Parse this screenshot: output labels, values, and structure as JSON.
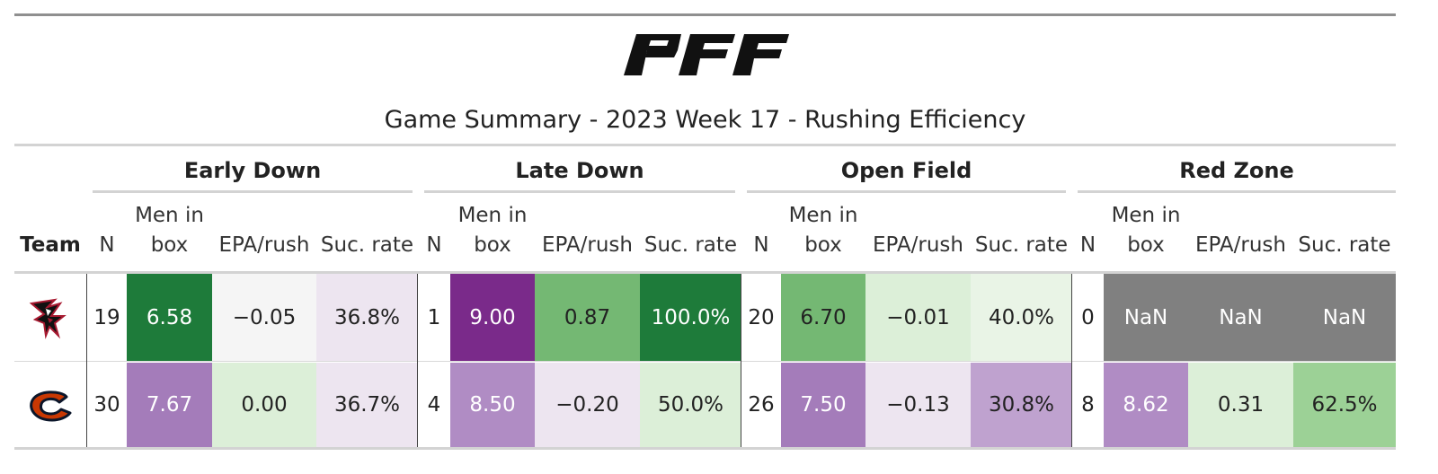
{
  "brand": "PFF",
  "title": "Game Summary - 2023 Week 17 - Rushing Efficiency",
  "groups": [
    "Early Down",
    "Late Down",
    "Open Field",
    "Red Zone"
  ],
  "columns": {
    "team": "Team",
    "n": "N",
    "box_line1": "Men in",
    "box_line2": "box",
    "epa": "EPA/rush",
    "suc": "Suc. rate"
  },
  "rows": [
    {
      "team_icon": "atlanta-falcons-logo-icon",
      "cells": [
        {
          "text": "19",
          "bg": "#ffffff"
        },
        {
          "text": "6.58",
          "bg": "#1e7b3a",
          "light": true
        },
        {
          "text": "−0.05",
          "bg": "#f5f5f5"
        },
        {
          "text": "36.8%",
          "bg": "#ede5f0"
        },
        {
          "text": "1",
          "bg": "#ffffff"
        },
        {
          "text": "9.00",
          "bg": "#7a2a8a",
          "light": true
        },
        {
          "text": "0.87",
          "bg": "#74b873"
        },
        {
          "text": "100.0%",
          "bg": "#1e7b3a",
          "light": true
        },
        {
          "text": "20",
          "bg": "#ffffff"
        },
        {
          "text": "6.70",
          "bg": "#74b873"
        },
        {
          "text": "−0.01",
          "bg": "#dcefd8"
        },
        {
          "text": "40.0%",
          "bg": "#e9f4e6"
        },
        {
          "text": "0",
          "bg": "#ffffff"
        },
        {
          "text": "NaN",
          "bg": "#808080",
          "light": true
        },
        {
          "text": "NaN",
          "bg": "#808080",
          "light": true
        },
        {
          "text": "NaN",
          "bg": "#808080",
          "light": true
        }
      ]
    },
    {
      "team_icon": "chicago-bears-logo-icon",
      "cells": [
        {
          "text": "30",
          "bg": "#ffffff"
        },
        {
          "text": "7.67",
          "bg": "#a47cba",
          "light": true
        },
        {
          "text": "0.00",
          "bg": "#dcefd8"
        },
        {
          "text": "36.7%",
          "bg": "#ede5f0"
        },
        {
          "text": "4",
          "bg": "#ffffff"
        },
        {
          "text": "8.50",
          "bg": "#b08cc4",
          "light": true
        },
        {
          "text": "−0.20",
          "bg": "#ede5f0"
        },
        {
          "text": "50.0%",
          "bg": "#dcefd8"
        },
        {
          "text": "26",
          "bg": "#ffffff"
        },
        {
          "text": "7.50",
          "bg": "#a47cba",
          "light": true
        },
        {
          "text": "−0.13",
          "bg": "#ede5f0"
        },
        {
          "text": "30.8%",
          "bg": "#bfa2cf"
        },
        {
          "text": "8",
          "bg": "#ffffff"
        },
        {
          "text": "8.62",
          "bg": "#b08cc4",
          "light": true
        },
        {
          "text": "0.31",
          "bg": "#dcefd8"
        },
        {
          "text": "62.5%",
          "bg": "#9cd196"
        }
      ]
    }
  ]
}
